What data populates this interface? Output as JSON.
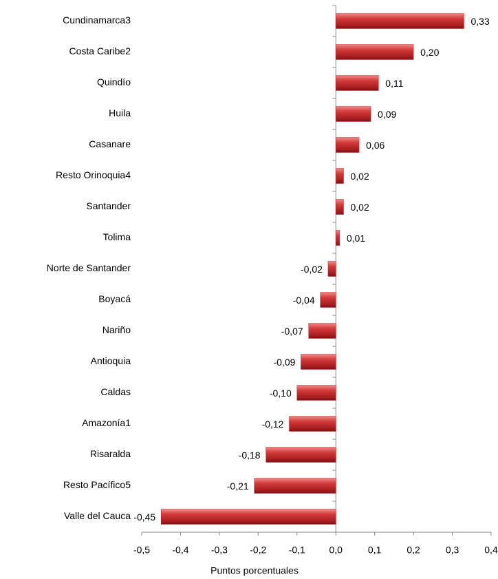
{
  "chart_data": {
    "type": "bar",
    "orientation": "horizontal",
    "categories": [
      "Cundinamarca3",
      "Costa Caribe2",
      "Quindío",
      "Huila",
      "Casanare",
      "Resto Orinoquia4",
      "Santander",
      "Tolima",
      "Norte de Santander",
      "Boyacá",
      "Nariño",
      "Antioquia",
      "Caldas",
      "Amazonía1",
      "Risaralda",
      "Resto Pacífico5",
      "Valle del Cauca"
    ],
    "values": [
      0.33,
      0.2,
      0.11,
      0.09,
      0.06,
      0.02,
      0.02,
      0.01,
      -0.02,
      -0.04,
      -0.07,
      -0.09,
      -0.1,
      -0.12,
      -0.18,
      -0.21,
      -0.45
    ],
    "value_labels": [
      "0,33",
      "0,20",
      "0,11",
      "0,09",
      "0,06",
      "0,02",
      "0,02",
      "0,01",
      "-0,02",
      "-0,04",
      "-0,07",
      "-0,09",
      "-0,10",
      "-0,12",
      "-0,18",
      "-0,21",
      "-0,45"
    ],
    "color": "#c0282a",
    "xlabel": "Puntos porcentuales",
    "xlim": [
      -0.5,
      0.4
    ],
    "xticks": [
      {
        "value": -0.5,
        "label": "-0,5"
      },
      {
        "value": -0.4,
        "label": "-0,4"
      },
      {
        "value": -0.3,
        "label": "-0,3"
      },
      {
        "value": -0.2,
        "label": "-0,2"
      },
      {
        "value": -0.1,
        "label": "-0,1"
      },
      {
        "value": 0,
        "label": "0,0"
      },
      {
        "value": 0.1,
        "label": "0,1"
      },
      {
        "value": 0.2,
        "label": "0,2"
      },
      {
        "value": 0.3,
        "label": "0,3"
      },
      {
        "value": 0.4,
        "label": "0,4"
      }
    ]
  }
}
